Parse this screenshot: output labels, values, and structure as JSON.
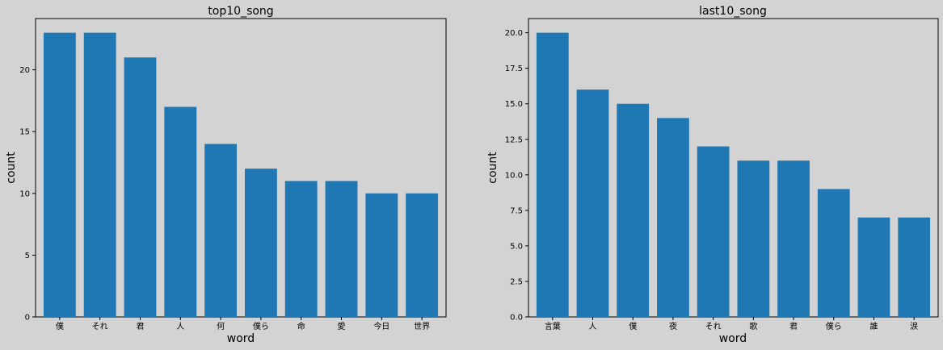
{
  "chart_data": [
    {
      "type": "bar",
      "title": "top10_song",
      "xlabel": "word",
      "ylabel": "count",
      "categories": [
        "僕",
        "それ",
        "君",
        "人",
        "何",
        "僕ら",
        "命",
        "愛",
        "今日",
        "世界"
      ],
      "values": [
        23,
        23,
        21,
        17,
        14,
        12,
        11,
        11,
        10,
        10
      ],
      "ylim": [
        0,
        24.15
      ],
      "yticks": [
        "0",
        "5",
        "10",
        "15",
        "20"
      ],
      "color": "#1f77b4",
      "grid": false
    },
    {
      "type": "bar",
      "title": "last10_song",
      "xlabel": "word",
      "ylabel": "count",
      "categories": [
        "言葉",
        "人",
        "僕",
        "夜",
        "それ",
        "歌",
        "君",
        "僕ら",
        "誰",
        "涙"
      ],
      "values": [
        20,
        16,
        15,
        14,
        12,
        11,
        11,
        9,
        7,
        7
      ],
      "ylim": [
        0,
        21
      ],
      "yticks": [
        "0.0",
        "2.5",
        "5.0",
        "7.5",
        "10.0",
        "12.5",
        "15.0",
        "17.5",
        "20.0"
      ],
      "color": "#1f77b4",
      "grid": false
    }
  ]
}
